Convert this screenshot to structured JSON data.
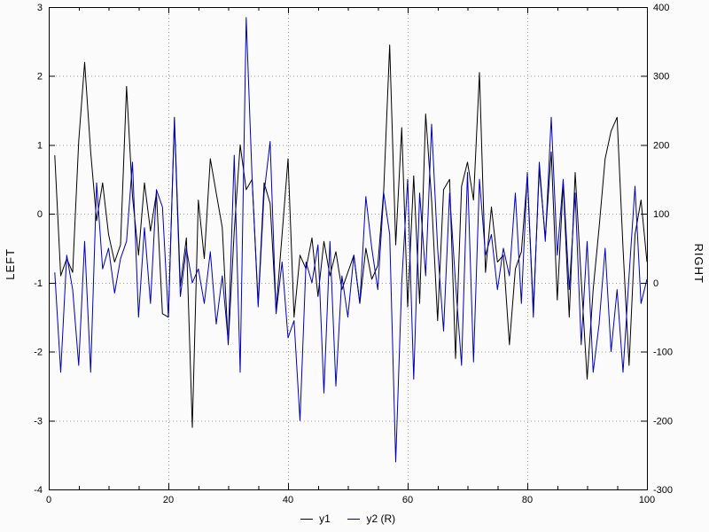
{
  "chart_data": {
    "type": "line",
    "title": "",
    "xlabel": "",
    "ylabel_left": "LEFT",
    "ylabel_right": "RIGHT",
    "x_range": [
      0,
      100
    ],
    "y_left_range": [
      -4,
      3
    ],
    "y_right_range": [
      -300,
      400
    ],
    "x_ticks": [
      0,
      20,
      40,
      60,
      80,
      100
    ],
    "x_minor_step": 5,
    "y_left_ticks": [
      -4,
      -3,
      -2,
      -1,
      0,
      1,
      2,
      3
    ],
    "y_right_ticks": [
      -300,
      -200,
      -100,
      0,
      100,
      200,
      300,
      400
    ],
    "grid": "dotted",
    "grid_color": "#9a9a9a",
    "legend_position": "bottom-center",
    "x": [
      1,
      2,
      3,
      4,
      5,
      6,
      7,
      8,
      9,
      10,
      11,
      12,
      13,
      14,
      15,
      16,
      17,
      18,
      19,
      20,
      21,
      22,
      23,
      24,
      25,
      26,
      27,
      28,
      29,
      30,
      31,
      32,
      33,
      34,
      35,
      36,
      37,
      38,
      39,
      40,
      41,
      42,
      43,
      44,
      45,
      46,
      47,
      48,
      49,
      50,
      51,
      52,
      53,
      54,
      55,
      56,
      57,
      58,
      59,
      60,
      61,
      62,
      63,
      64,
      65,
      66,
      67,
      68,
      69,
      70,
      71,
      72,
      73,
      74,
      75,
      76,
      77,
      78,
      79,
      80,
      81,
      82,
      83,
      84,
      85,
      86,
      87,
      88,
      89,
      90,
      91,
      92,
      93,
      94,
      95,
      96,
      97,
      98,
      99,
      100
    ],
    "series": [
      {
        "name": "y1",
        "axis": "left",
        "color": "#000000",
        "values": [
          0.85,
          -0.9,
          -0.65,
          -0.85,
          1.05,
          2.2,
          0.9,
          -0.1,
          0.45,
          -0.3,
          -0.7,
          -0.45,
          1.85,
          0.25,
          -0.6,
          0.45,
          -0.25,
          0.3,
          -1.45,
          -1.5,
          1.4,
          -1.05,
          -0.35,
          -3.1,
          0.2,
          -0.65,
          0.8,
          0.3,
          -0.2,
          -1.9,
          -0.25,
          1.0,
          0.35,
          0.5,
          -1.3,
          0.45,
          0.15,
          -1.4,
          -0.3,
          0.8,
          -1.5,
          -0.6,
          -0.8,
          -0.35,
          -1.2,
          -0.4,
          -0.9,
          -0.55,
          -1.1,
          -0.85,
          -0.6,
          -1.3,
          -0.5,
          -0.95,
          -0.75,
          0.35,
          2.45,
          -0.45,
          1.25,
          -1.35,
          0.55,
          -1.3,
          1.45,
          0.2,
          -1.55,
          0.35,
          0.5,
          -2.1,
          0.4,
          0.75,
          0.2,
          2.05,
          -0.85,
          0.1,
          -0.7,
          -0.6,
          -1.9,
          -0.8,
          -0.55,
          0.55,
          -1.4,
          0.65,
          -0.35,
          0.9,
          -1.25,
          0.45,
          -1.5,
          0.6,
          -0.95,
          -2.4,
          -1.1,
          -0.2,
          0.8,
          1.2,
          1.4,
          -0.5,
          -2.2,
          -0.3,
          0.2,
          -0.7
        ]
      },
      {
        "name": "y2 (R)",
        "axis": "right",
        "color": "#0000bb",
        "values": [
          15,
          -130,
          40,
          -10,
          -120,
          60,
          -130,
          145,
          20,
          50,
          -15,
          35,
          60,
          175,
          -50,
          80,
          -30,
          135,
          110,
          -50,
          235,
          -20,
          50,
          0,
          20,
          -30,
          45,
          -60,
          10,
          -85,
          185,
          -130,
          385,
          150,
          -35,
          130,
          205,
          -45,
          30,
          -80,
          -55,
          -200,
          30,
          0,
          55,
          -160,
          60,
          -150,
          10,
          -50,
          40,
          -30,
          125,
          50,
          -10,
          130,
          70,
          -260,
          0,
          150,
          -140,
          130,
          10,
          230,
          50,
          -70,
          130,
          0,
          -120,
          160,
          -115,
          150,
          40,
          70,
          -10,
          50,
          10,
          130,
          -30,
          160,
          -50,
          175,
          60,
          240,
          40,
          150,
          -10,
          130,
          -90,
          60,
          -130,
          -60,
          50,
          -100,
          -10,
          -130,
          10,
          140,
          -30,
          5
        ]
      }
    ]
  }
}
